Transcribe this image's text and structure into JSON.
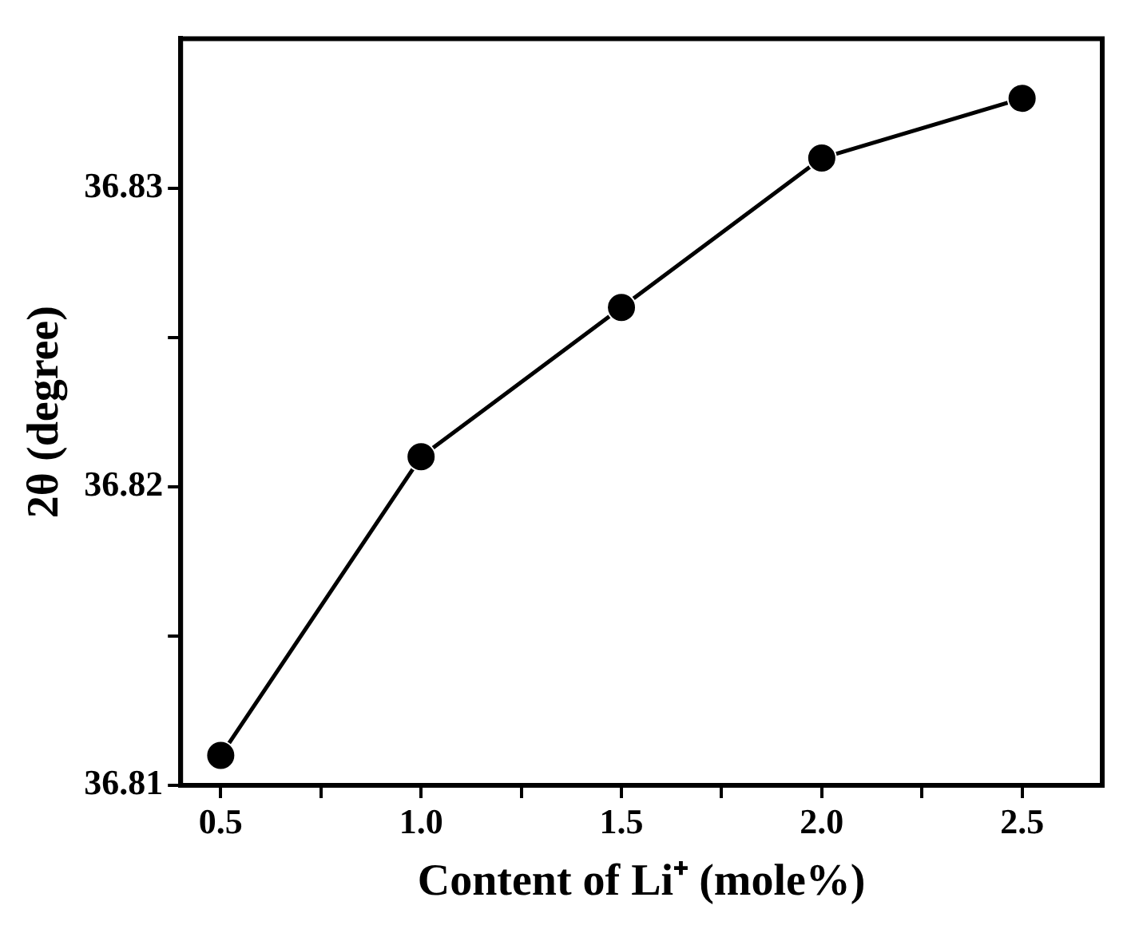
{
  "chart_data": {
    "type": "line",
    "xlabel": "Content of Li⁺ (mole%)",
    "ylabel": "2θ (degree)",
    "x": [
      0.5,
      1.0,
      1.5,
      2.0,
      2.5
    ],
    "series": [
      {
        "color": "#000000",
        "values": [
          36.811,
          36.821,
          36.826,
          36.831,
          36.833
        ]
      }
    ],
    "xlim": [
      0.4,
      2.7
    ],
    "ylim": [
      36.81,
      36.835
    ],
    "xticks": [
      {
        "value": 0.5,
        "label": "0.5"
      },
      {
        "value": 0.75,
        "label": null
      },
      {
        "value": 1.0,
        "label": "1.0"
      },
      {
        "value": 1.25,
        "label": null
      },
      {
        "value": 1.5,
        "label": "1.5"
      },
      {
        "value": 1.75,
        "label": null
      },
      {
        "value": 2.0,
        "label": "2.0"
      },
      {
        "value": 2.25,
        "label": null
      },
      {
        "value": 2.5,
        "label": "2.5"
      }
    ],
    "yticks": [
      {
        "value": 36.81,
        "label": "36.81"
      },
      {
        "value": 36.815,
        "label": null
      },
      {
        "value": 36.82,
        "label": "36.82"
      },
      {
        "value": 36.825,
        "label": null
      },
      {
        "value": 36.83,
        "label": "36.83"
      }
    ],
    "grid": false,
    "legend": false,
    "marker": "circle",
    "line_style": "solid"
  }
}
